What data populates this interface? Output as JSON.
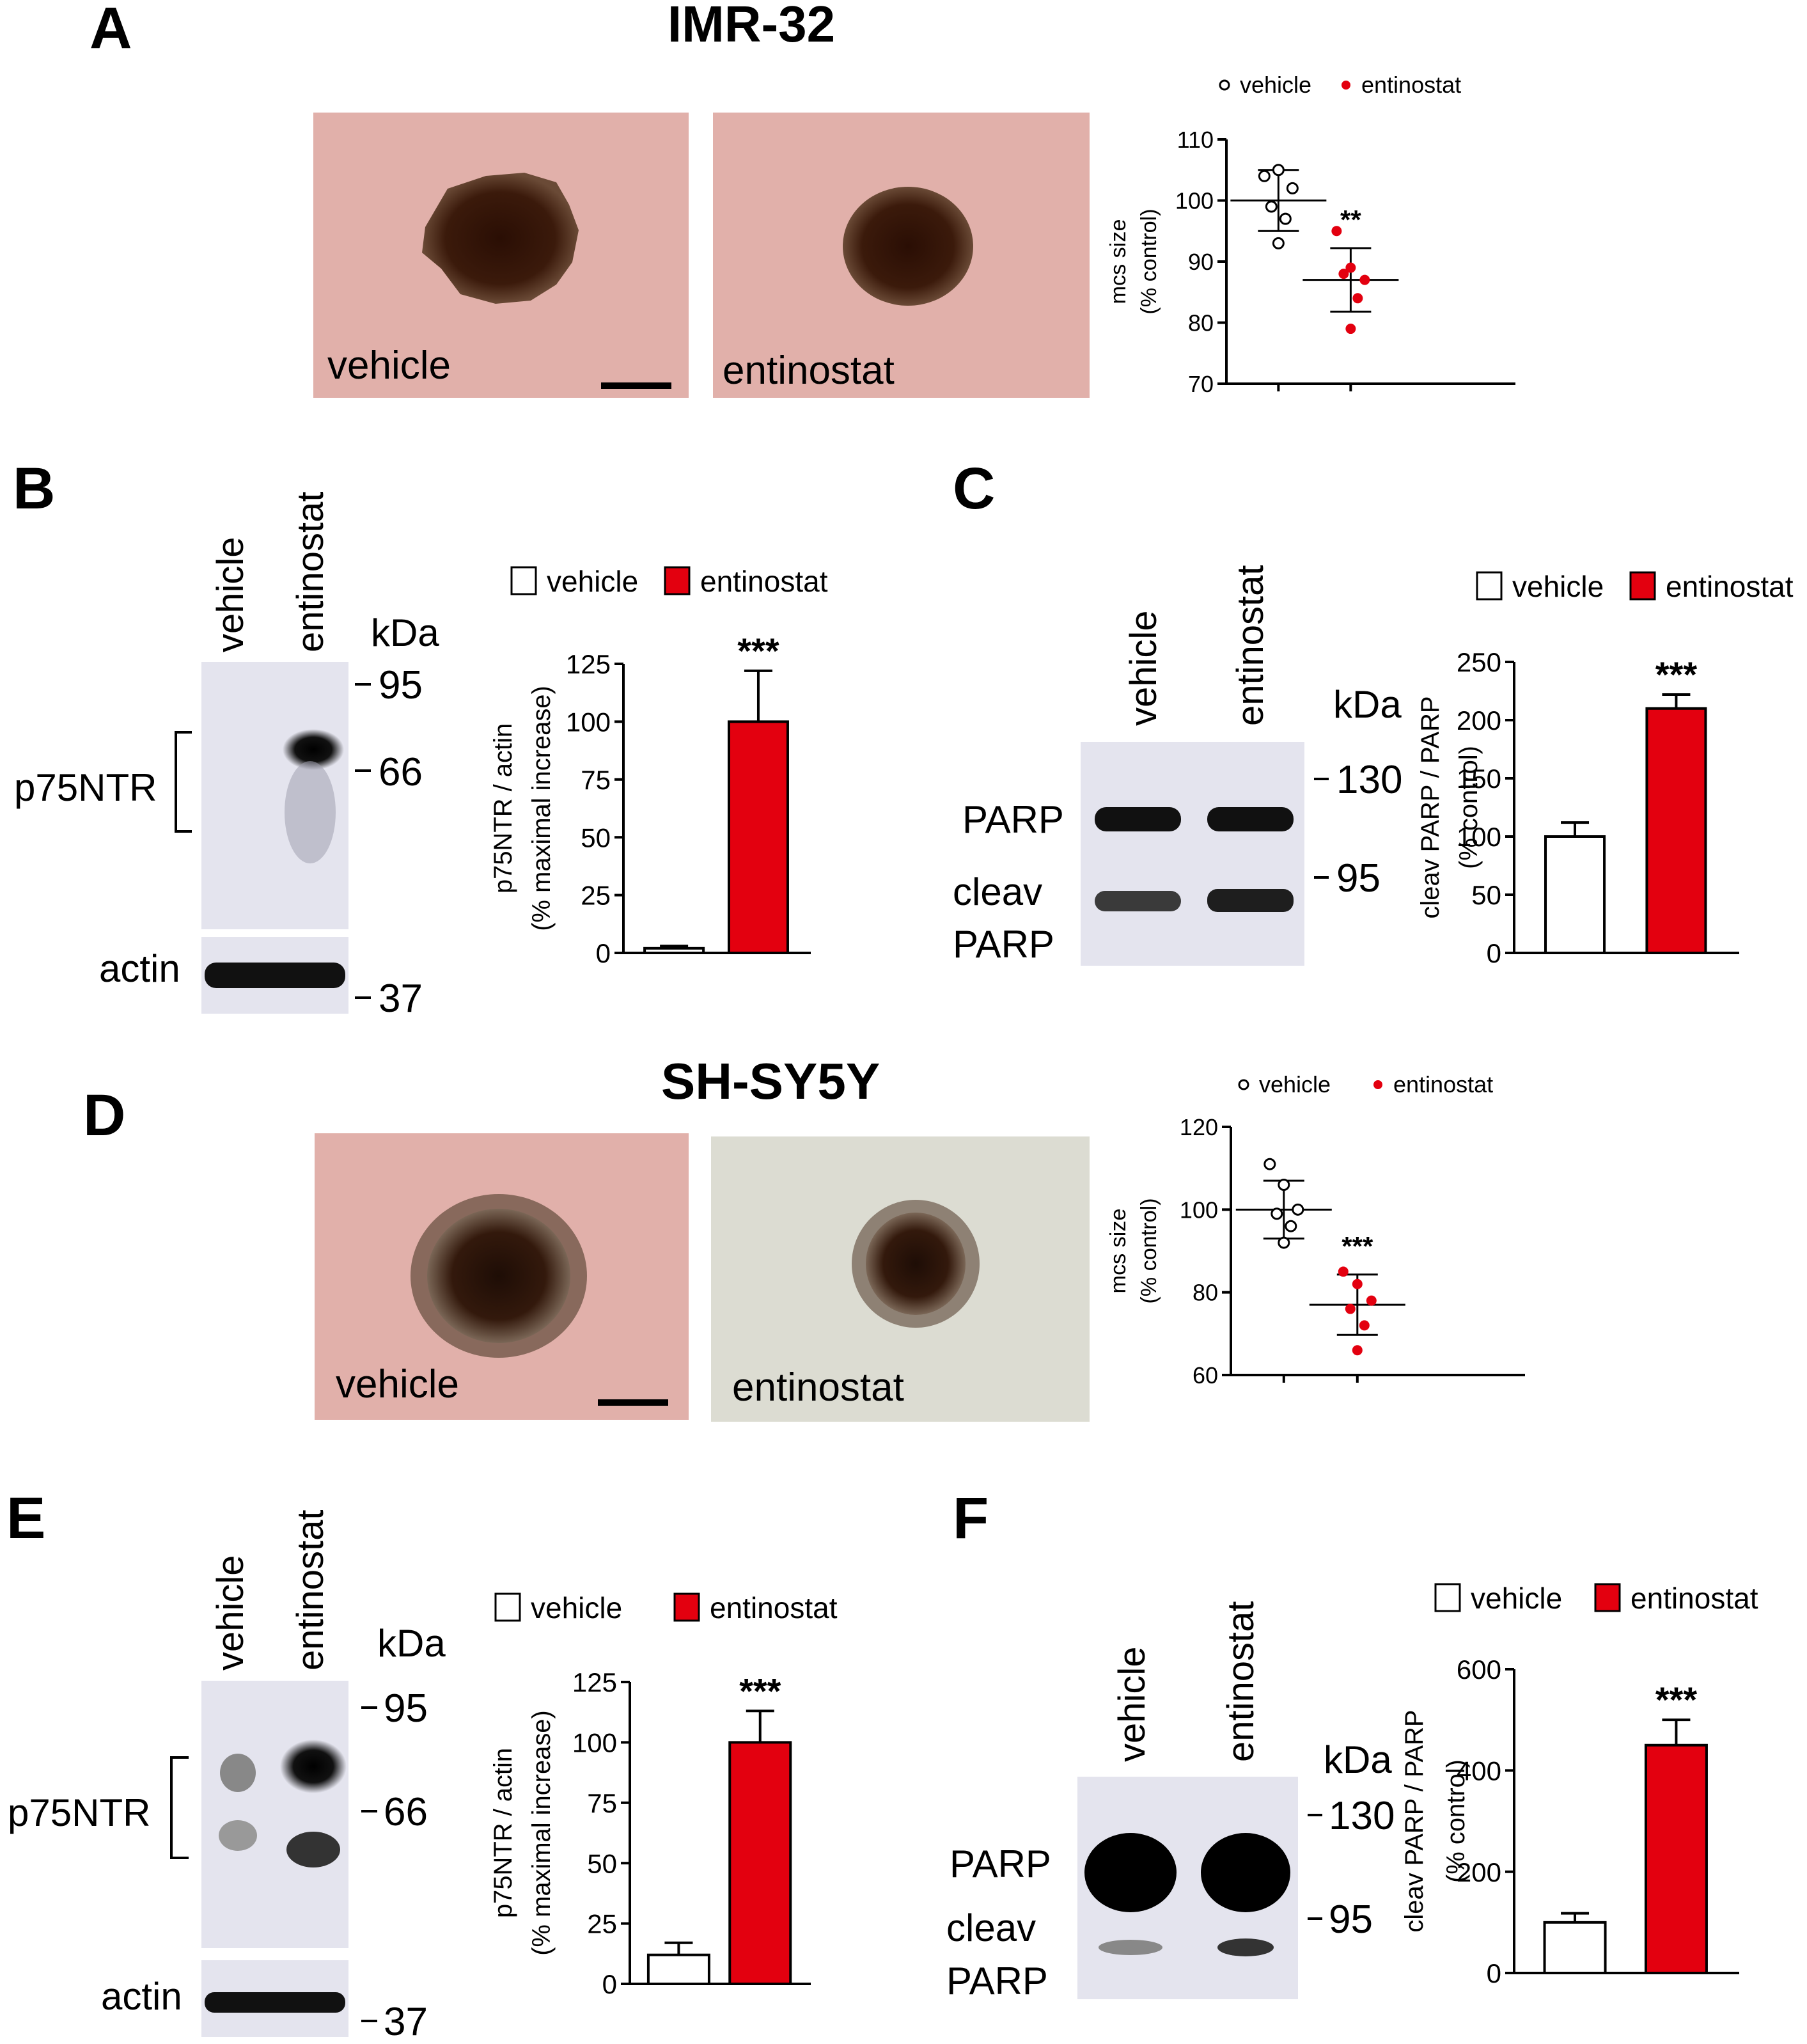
{
  "colors": {
    "vehicle": "#ffffff",
    "entinostat": "#e3000f",
    "axis": "#000000",
    "photo_bg": "#e3b2ad",
    "photo_bg_light": "#dcdcd3",
    "blot_bg": "#e2e2ec"
  },
  "panels": {
    "A": {
      "letter": "A",
      "cell_line": "IMR-32",
      "photo_left": "vehicle",
      "photo_right": "entinostat"
    },
    "B": {
      "letter": "B",
      "lane1": "vehicle",
      "lane2": "entinostat",
      "kda": "kDa",
      "marker_95": "95",
      "marker_66": "66",
      "marker_37": "37",
      "band_label": "p75NTR",
      "actin_label": "actin"
    },
    "C": {
      "letter": "C",
      "lane1": "vehicle",
      "lane2": "entinostat",
      "kda": "kDa",
      "marker_130": "130",
      "marker_95": "95",
      "parp_label": "PARP",
      "cleav_label": "cleav",
      "cleav_parp_label": "PARP"
    },
    "D": {
      "letter": "D",
      "cell_line": "SH-SY5Y",
      "photo_left": "vehicle",
      "photo_right": "entinostat"
    },
    "E": {
      "letter": "E",
      "lane1": "vehicle",
      "lane2": "entinostat",
      "kda": "kDa",
      "marker_95": "95",
      "marker_66": "66",
      "marker_37": "37",
      "band_label": "p75NTR",
      "actin_label": "actin"
    },
    "F": {
      "letter": "F",
      "lane1": "vehicle",
      "lane2": "entinostat",
      "kda": "kDa",
      "marker_130": "130",
      "marker_95": "95",
      "parp_label": "PARP",
      "cleav_label": "cleav",
      "cleav_parp_label": "PARP"
    }
  },
  "chart_data": [
    {
      "id": "A-scatter",
      "type": "scatter",
      "ylabel_lines": [
        "mcs size",
        "(% control)"
      ],
      "ylim": [
        70,
        110
      ],
      "yticks": [
        70,
        80,
        90,
        100,
        110
      ],
      "legend": [
        "vehicle",
        "entinostat"
      ],
      "legend_position": "top",
      "series": [
        {
          "name": "vehicle",
          "points": [
            104,
            105,
            102,
            99,
            97,
            93
          ],
          "mean": 100,
          "sd": 5
        },
        {
          "name": "entinostat",
          "points": [
            95,
            89,
            87,
            88,
            84,
            79
          ],
          "mean": 87,
          "sd": 5.2
        }
      ],
      "significance": "**"
    },
    {
      "id": "B-bar",
      "type": "bar",
      "ylabel_lines": [
        "p75NTR / actin",
        "(% maximal increase)"
      ],
      "ylim": [
        0,
        125
      ],
      "yticks": [
        0,
        25,
        50,
        75,
        100,
        125
      ],
      "categories": [
        "vehicle",
        "entinostat"
      ],
      "values": [
        2,
        100
      ],
      "errors": [
        1,
        22
      ],
      "legend": [
        "vehicle",
        "entinostat"
      ],
      "legend_position": "top",
      "significance": "***"
    },
    {
      "id": "C-bar",
      "type": "bar",
      "ylabel_lines": [
        "cleav PARP / PARP",
        "(% control)"
      ],
      "ylim": [
        0,
        250
      ],
      "yticks": [
        0,
        50,
        100,
        150,
        200,
        250
      ],
      "categories": [
        "vehicle",
        "entinostat"
      ],
      "values": [
        100,
        210
      ],
      "errors": [
        12,
        12
      ],
      "legend": [
        "vehicle",
        "entinostat"
      ],
      "legend_position": "top",
      "significance": "***"
    },
    {
      "id": "D-scatter",
      "type": "scatter",
      "ylabel_lines": [
        "mcs size",
        "(% control)"
      ],
      "ylim": [
        60,
        120
      ],
      "yticks": [
        60,
        80,
        100,
        120
      ],
      "legend": [
        "vehicle",
        "entinostat"
      ],
      "legend_position": "top",
      "series": [
        {
          "name": "vehicle",
          "points": [
            111,
            106,
            100,
            99,
            96,
            92
          ],
          "mean": 100,
          "sd": 7
        },
        {
          "name": "entinostat",
          "points": [
            85,
            82,
            78,
            76,
            72,
            66
          ],
          "mean": 77,
          "sd": 7.3
        }
      ],
      "significance": "***"
    },
    {
      "id": "E-bar",
      "type": "bar",
      "ylabel_lines": [
        "p75NTR / actin",
        "(% maximal increase)"
      ],
      "ylim": [
        0,
        125
      ],
      "yticks": [
        0,
        25,
        50,
        75,
        100,
        125
      ],
      "categories": [
        "vehicle",
        "entinostat"
      ],
      "values": [
        12,
        100
      ],
      "errors": [
        5,
        13
      ],
      "legend": [
        "vehicle",
        "entinostat"
      ],
      "legend_position": "top",
      "significance": "***"
    },
    {
      "id": "F-bar",
      "type": "bar",
      "ylabel_lines": [
        "cleav PARP / PARP",
        "(% control)"
      ],
      "ylim": [
        0,
        600
      ],
      "yticks": [
        0,
        200,
        400,
        600
      ],
      "categories": [
        "vehicle",
        "entinostat"
      ],
      "values": [
        100,
        450
      ],
      "errors": [
        18,
        50
      ],
      "legend": [
        "vehicle",
        "entinostat"
      ],
      "legend_position": "top",
      "significance": "***"
    }
  ]
}
